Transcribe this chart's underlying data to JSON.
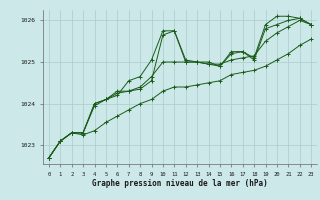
{
  "xlabel": "Graphe pression niveau de la mer (hPa)",
  "bg_color": "#cce8e8",
  "line_color": "#1a5c1a",
  "grid_color": "#aacccc",
  "xlim": [
    -0.5,
    23.5
  ],
  "ylim": [
    1022.55,
    1026.25
  ],
  "yticks": [
    1023,
    1024,
    1025,
    1026
  ],
  "xticks": [
    0,
    1,
    2,
    3,
    4,
    5,
    6,
    7,
    8,
    9,
    10,
    11,
    12,
    13,
    14,
    15,
    16,
    17,
    18,
    19,
    20,
    21,
    22,
    23
  ],
  "series": [
    [
      1022.7,
      1023.1,
      1023.3,
      1023.3,
      1023.95,
      1024.1,
      1024.2,
      1024.55,
      1024.65,
      1025.05,
      1025.75,
      1025.75,
      1025.05,
      1025.0,
      1025.0,
      1024.9,
      1025.25,
      1025.25,
      1025.1,
      1025.9,
      1026.1,
      1026.1,
      1026.05,
      1025.9
    ],
    [
      1022.7,
      1023.1,
      1023.3,
      1023.3,
      1024.0,
      1024.1,
      1024.25,
      1024.3,
      1024.35,
      1024.55,
      1025.65,
      1025.75,
      1025.0,
      1025.0,
      1024.95,
      1024.9,
      1025.2,
      1025.25,
      1025.05,
      1025.8,
      1025.9,
      1026.0,
      1026.05,
      1025.9
    ],
    [
      1022.7,
      1023.1,
      1023.3,
      1023.3,
      1024.0,
      1024.1,
      1024.3,
      1024.3,
      1024.4,
      1024.65,
      1025.0,
      1025.0,
      1025.0,
      1025.0,
      1024.95,
      1024.95,
      1025.05,
      1025.1,
      1025.15,
      1025.5,
      1025.7,
      1025.85,
      1026.0,
      1025.9
    ],
    [
      1022.7,
      1023.1,
      1023.3,
      1023.25,
      1023.35,
      1023.55,
      1023.7,
      1023.85,
      1024.0,
      1024.1,
      1024.3,
      1024.4,
      1024.4,
      1024.45,
      1024.5,
      1024.55,
      1024.7,
      1024.75,
      1024.8,
      1024.9,
      1025.05,
      1025.2,
      1025.4,
      1025.55
    ]
  ]
}
